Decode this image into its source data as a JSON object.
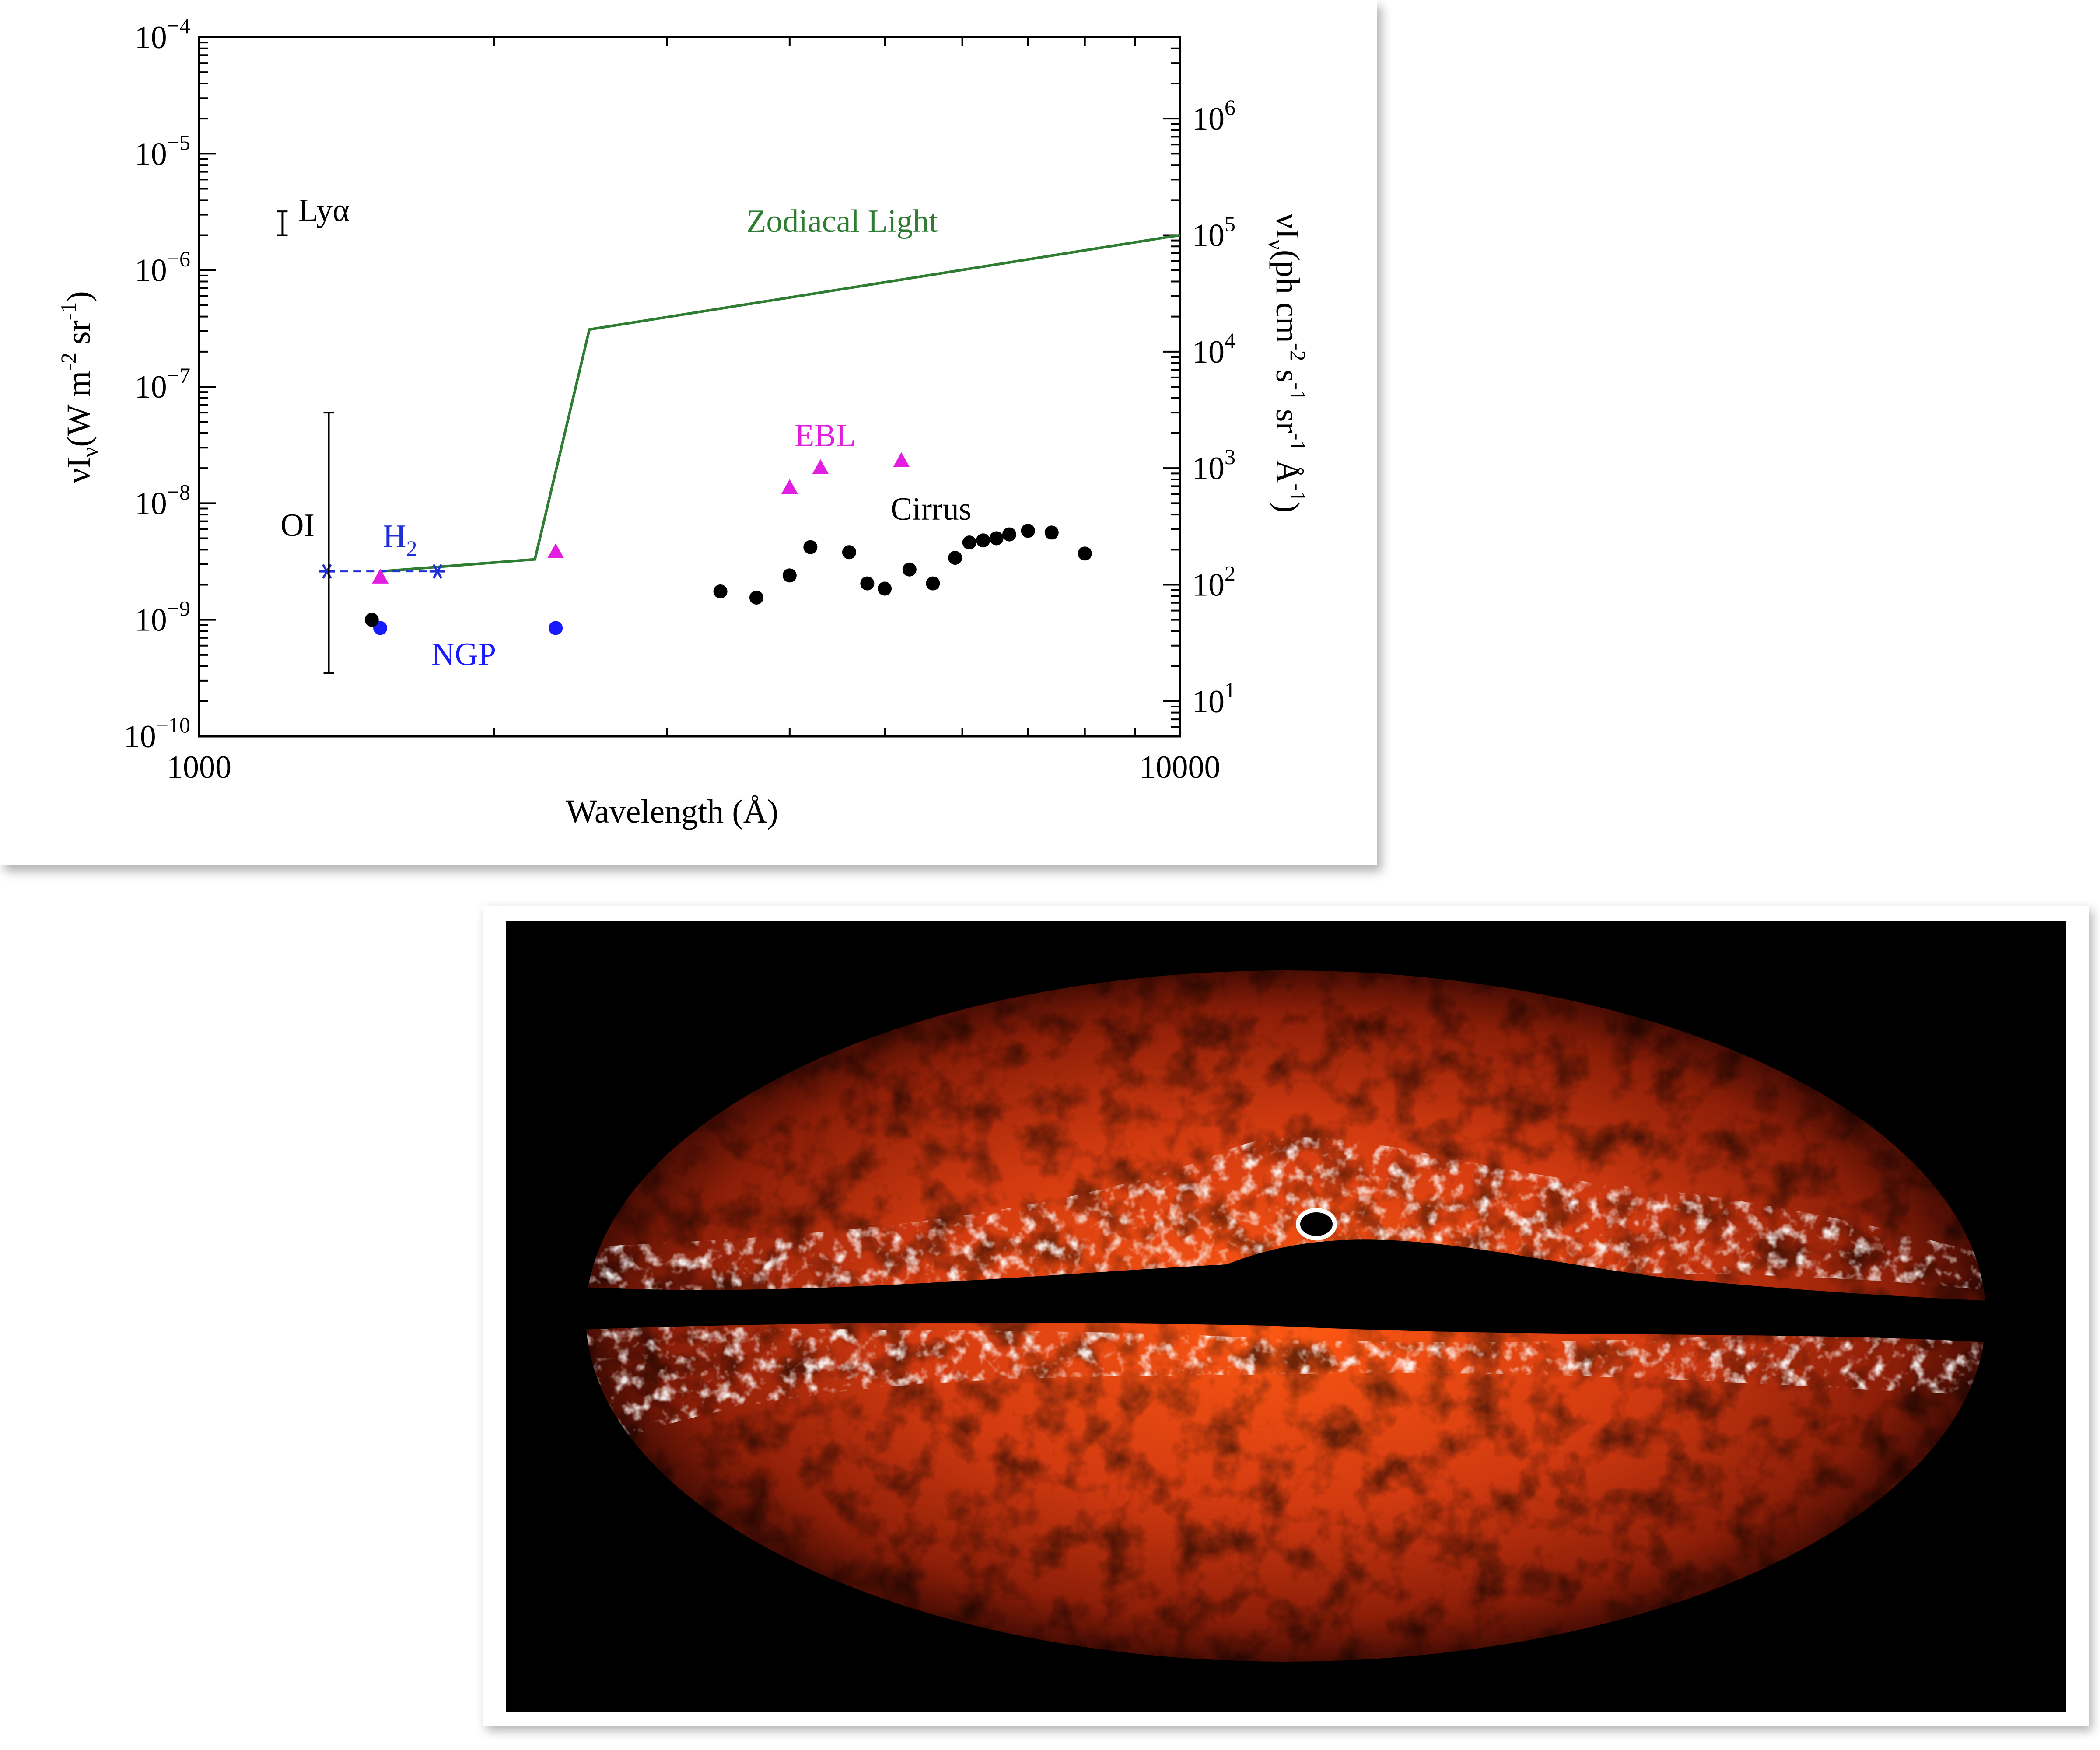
{
  "chart_data": {
    "type": "scatter",
    "x_scale": "log",
    "y_scale": "log",
    "xlim": [
      1000,
      10000
    ],
    "ylim": [
      1e-10,
      0.0001
    ],
    "y2lim": [
      5,
      5000000
    ],
    "xlabel": "Wavelength (Å)",
    "ylabel": {
      "base": "νI",
      "sub": "ν",
      "rest": "(W m",
      "e1": "-2",
      "mid": " sr",
      "e2": "-1",
      "close": ")"
    },
    "y2label": {
      "base": "νI",
      "sub": "ν",
      "rest": "(ph cm",
      "e1": "-2",
      "p2": " s",
      "e2": "-1",
      "p3": " sr",
      "e3": "-1",
      "p4": " Å",
      "e4": "-1",
      "close": ")"
    },
    "x_ticks": [
      {
        "value": 1000,
        "label": "1000"
      },
      {
        "value": 10000,
        "label": "10000"
      }
    ],
    "y_ticks": [
      {
        "value": 1e-10,
        "base": "10",
        "exp": "−10"
      },
      {
        "value": 1e-09,
        "base": "10",
        "exp": "−9"
      },
      {
        "value": 1e-08,
        "base": "10",
        "exp": "−8"
      },
      {
        "value": 1e-07,
        "base": "10",
        "exp": "−7"
      },
      {
        "value": 1e-06,
        "base": "10",
        "exp": "−6"
      },
      {
        "value": 1e-05,
        "base": "10",
        "exp": "−5"
      },
      {
        "value": 0.0001,
        "base": "10",
        "exp": "−4"
      }
    ],
    "y2_ticks": [
      {
        "value": 10,
        "base": "10",
        "exp": "1"
      },
      {
        "value": 100,
        "base": "10",
        "exp": "2"
      },
      {
        "value": 1000,
        "base": "10",
        "exp": "3"
      },
      {
        "value": 10000,
        "base": "10",
        "exp": "4"
      },
      {
        "value": 100000,
        "base": "10",
        "exp": "5"
      },
      {
        "value": 1000000,
        "base": "10",
        "exp": "6"
      }
    ],
    "series": [
      {
        "name": "Zodiacal Light",
        "kind": "line",
        "color": "#2e7d32",
        "x": [
          1530,
          2200,
          2500,
          10000
        ],
        "y": [
          2.6e-09,
          3.3e-09,
          3.1e-07,
          2e-06
        ]
      },
      {
        "name": "H2",
        "kind": "dashed-line-star",
        "color": "#1f2fd8",
        "x": [
          1350,
          1750
        ],
        "y": [
          2.6e-09,
          2.6e-09
        ]
      },
      {
        "name": "EBL",
        "kind": "triangle",
        "color": "#e21ee0",
        "x": [
          1530,
          2310,
          4000,
          4300,
          5200
        ],
        "y": [
          2.3e-09,
          3.8e-09,
          1.35e-08,
          2e-08,
          2.3e-08
        ]
      },
      {
        "name": "NGP",
        "kind": "circle",
        "color": "#1a1aff",
        "x": [
          1530,
          2310
        ],
        "y": [
          8.5e-10,
          8.5e-10
        ]
      },
      {
        "name": "Cirrus",
        "kind": "circle",
        "color": "#000000",
        "x": [
          1500,
          3400,
          3700,
          4000,
          4200,
          4600,
          4800,
          5000,
          5300,
          5600,
          5900,
          6100,
          6300,
          6500,
          6700,
          7000,
          7400,
          8000
        ],
        "y": [
          1e-09,
          1.75e-09,
          1.55e-09,
          2.4e-09,
          4.2e-09,
          3.8e-09,
          2.05e-09,
          1.85e-09,
          2.7e-09,
          2.05e-09,
          3.4e-09,
          4.6e-09,
          4.8e-09,
          5e-09,
          5.4e-09,
          5.8e-09,
          5.6e-09,
          3.7e-09
        ]
      },
      {
        "name": "OI",
        "kind": "errorbar",
        "color": "#000000",
        "x": [
          1356
        ],
        "y_low": [
          3.5e-10
        ],
        "y_high": [
          6e-08
        ]
      },
      {
        "name": "Lyα",
        "kind": "errorbar",
        "color": "#000000",
        "x": [
          1216
        ],
        "y_low": [
          2e-06
        ],
        "y_high": [
          3.2e-06
        ]
      }
    ],
    "annotations": {
      "zodiacal": "Zodiacal Light",
      "ebl": "EBL",
      "cirrus": "Cirrus",
      "oi": "OI",
      "h2_base": "H",
      "h2_sub": "2",
      "ngp": "NGP",
      "lya": "Lyα"
    }
  },
  "colors": {
    "zodiacal": "#2e7d32",
    "ebl": "#e21ee0",
    "ngp": "#1a1aff",
    "h2": "#1f2fd8",
    "cirrus": "#000000"
  },
  "sky_map": {
    "description_visible": false
  }
}
